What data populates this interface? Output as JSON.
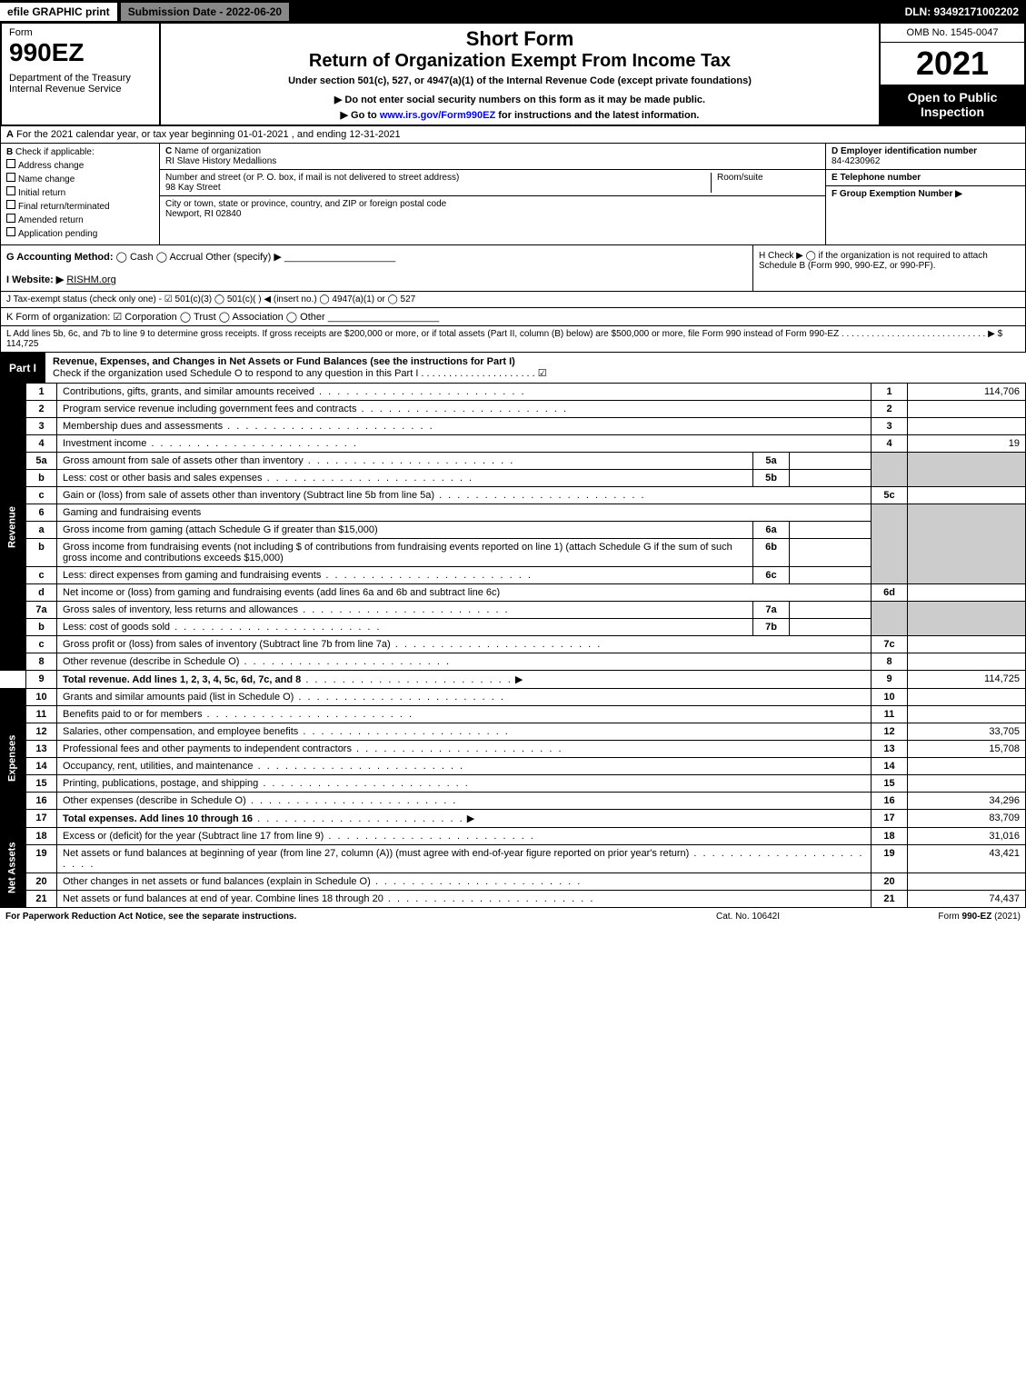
{
  "topbar": {
    "efile": "efile GRAPHIC print",
    "subdate": "Submission Date - 2022-06-20",
    "dln": "DLN: 93492171002202"
  },
  "header": {
    "form": "Form",
    "formno": "990EZ",
    "dept": "Department of the Treasury\nInternal Revenue Service",
    "title1": "Short Form",
    "title2": "Return of Organization Exempt From Income Tax",
    "title3": "Under section 501(c), 527, or 4947(a)(1) of the Internal Revenue Code (except private foundations)",
    "title4": "▶ Do not enter social security numbers on this form as it may be made public.",
    "title5": "▶ Go to www.irs.gov/Form990EZ for instructions and the latest information.",
    "omb": "OMB No. 1545-0047",
    "year": "2021",
    "open": "Open to Public Inspection"
  },
  "rowA": {
    "label": "A",
    "text": "For the 2021 calendar year, or tax year beginning 01-01-2021 , and ending 12-31-2021"
  },
  "colB": {
    "label": "B",
    "heading": "Check if applicable:",
    "items": [
      "Address change",
      "Name change",
      "Initial return",
      "Final return/terminated",
      "Amended return",
      "Application pending"
    ]
  },
  "colC": {
    "label": "C",
    "nameLabel": "Name of organization",
    "name": "RI Slave History Medallions",
    "addrLabel": "Number and street (or P. O. box, if mail is not delivered to street address)",
    "addr": "98 Kay Street",
    "roomLabel": "Room/suite",
    "cityLabel": "City or town, state or province, country, and ZIP or foreign postal code",
    "city": "Newport, RI  02840"
  },
  "colD": {
    "dLabel": "D Employer identification number",
    "ein": "84-4230962",
    "eLabel": "E Telephone number",
    "fLabel": "F Group Exemption Number  ▶"
  },
  "rowG": {
    "label": "G Accounting Method:",
    "opts": "◯ Cash  ◯ Accrual  Other (specify) ▶ ____________________"
  },
  "rowH": {
    "text": "H  Check ▶  ◯  if the organization is not required to attach Schedule B (Form 990, 990-EZ, or 990-PF)."
  },
  "rowI": {
    "label": "I Website: ▶",
    "site": "RISHM.org"
  },
  "rowJ": {
    "text": "J Tax-exempt status (check only one) - ☑ 501(c)(3) ◯ 501(c)(  ) ◀ (insert no.) ◯ 4947(a)(1) or ◯ 527"
  },
  "rowK": {
    "text": "K Form of organization:  ☑ Corporation  ◯ Trust  ◯ Association  ◯ Other ____________________"
  },
  "rowL": {
    "text": "L Add lines 5b, 6c, and 7b to line 9 to determine gross receipts. If gross receipts are $200,000 or more, or if total assets (Part II, column (B) below) are $500,000 or more, file Form 990 instead of Form 990-EZ . . . . . . . . . . . . . . . . . . . . . . . . . . . . . ▶ $ 114,725"
  },
  "part1": {
    "label": "Part I",
    "title": "Revenue, Expenses, and Changes in Net Assets or Fund Balances (see the instructions for Part I)",
    "subtitle": "Check if the organization used Schedule O to respond to any question in this Part I . . . . . . . . . . . . . . . . . . . . . ☑"
  },
  "sidelabels": {
    "revenue": "Revenue",
    "expenses": "Expenses",
    "netassets": "Net Assets"
  },
  "lines": {
    "l1": {
      "num": "1",
      "desc": "Contributions, gifts, grants, and similar amounts received",
      "rnum": "1",
      "rval": "114,706"
    },
    "l2": {
      "num": "2",
      "desc": "Program service revenue including government fees and contracts",
      "rnum": "2",
      "rval": ""
    },
    "l3": {
      "num": "3",
      "desc": "Membership dues and assessments",
      "rnum": "3",
      "rval": ""
    },
    "l4": {
      "num": "4",
      "desc": "Investment income",
      "rnum": "4",
      "rval": "19"
    },
    "l5a": {
      "num": "5a",
      "desc": "Gross amount from sale of assets other than inventory",
      "subnum": "5a"
    },
    "l5b": {
      "num": "b",
      "desc": "Less: cost or other basis and sales expenses",
      "subnum": "5b"
    },
    "l5c": {
      "num": "c",
      "desc": "Gain or (loss) from sale of assets other than inventory (Subtract line 5b from line 5a)",
      "rnum": "5c",
      "rval": ""
    },
    "l6": {
      "num": "6",
      "desc": "Gaming and fundraising events"
    },
    "l6a": {
      "num": "a",
      "desc": "Gross income from gaming (attach Schedule G if greater than $15,000)",
      "subnum": "6a"
    },
    "l6b": {
      "num": "b",
      "desc": "Gross income from fundraising events (not including $               of contributions from fundraising events reported on line 1) (attach Schedule G if the sum of such gross income and contributions exceeds $15,000)",
      "subnum": "6b"
    },
    "l6c": {
      "num": "c",
      "desc": "Less: direct expenses from gaming and fundraising events",
      "subnum": "6c"
    },
    "l6d": {
      "num": "d",
      "desc": "Net income or (loss) from gaming and fundraising events (add lines 6a and 6b and subtract line 6c)",
      "rnum": "6d",
      "rval": ""
    },
    "l7a": {
      "num": "7a",
      "desc": "Gross sales of inventory, less returns and allowances",
      "subnum": "7a"
    },
    "l7b": {
      "num": "b",
      "desc": "Less: cost of goods sold",
      "subnum": "7b"
    },
    "l7c": {
      "num": "c",
      "desc": "Gross profit or (loss) from sales of inventory (Subtract line 7b from line 7a)",
      "rnum": "7c",
      "rval": ""
    },
    "l8": {
      "num": "8",
      "desc": "Other revenue (describe in Schedule O)",
      "rnum": "8",
      "rval": ""
    },
    "l9": {
      "num": "9",
      "desc": "Total revenue. Add lines 1, 2, 3, 4, 5c, 6d, 7c, and 8",
      "rnum": "9",
      "rval": "114,725",
      "arrow": "▶"
    },
    "l10": {
      "num": "10",
      "desc": "Grants and similar amounts paid (list in Schedule O)",
      "rnum": "10",
      "rval": ""
    },
    "l11": {
      "num": "11",
      "desc": "Benefits paid to or for members",
      "rnum": "11",
      "rval": ""
    },
    "l12": {
      "num": "12",
      "desc": "Salaries, other compensation, and employee benefits",
      "rnum": "12",
      "rval": "33,705"
    },
    "l13": {
      "num": "13",
      "desc": "Professional fees and other payments to independent contractors",
      "rnum": "13",
      "rval": "15,708"
    },
    "l14": {
      "num": "14",
      "desc": "Occupancy, rent, utilities, and maintenance",
      "rnum": "14",
      "rval": ""
    },
    "l15": {
      "num": "15",
      "desc": "Printing, publications, postage, and shipping",
      "rnum": "15",
      "rval": ""
    },
    "l16": {
      "num": "16",
      "desc": "Other expenses (describe in Schedule O)",
      "rnum": "16",
      "rval": "34,296"
    },
    "l17": {
      "num": "17",
      "desc": "Total expenses. Add lines 10 through 16",
      "rnum": "17",
      "rval": "83,709",
      "arrow": "▶"
    },
    "l18": {
      "num": "18",
      "desc": "Excess or (deficit) for the year (Subtract line 17 from line 9)",
      "rnum": "18",
      "rval": "31,016"
    },
    "l19": {
      "num": "19",
      "desc": "Net assets or fund balances at beginning of year (from line 27, column (A)) (must agree with end-of-year figure reported on prior year's return)",
      "rnum": "19",
      "rval": "43,421"
    },
    "l20": {
      "num": "20",
      "desc": "Other changes in net assets or fund balances (explain in Schedule O)",
      "rnum": "20",
      "rval": ""
    },
    "l21": {
      "num": "21",
      "desc": "Net assets or fund balances at end of year. Combine lines 18 through 20",
      "rnum": "21",
      "rval": "74,437"
    }
  },
  "footer": {
    "f1": "For Paperwork Reduction Act Notice, see the separate instructions.",
    "f2": "Cat. No. 10642I",
    "f3": "Form 990-EZ (2021)"
  }
}
